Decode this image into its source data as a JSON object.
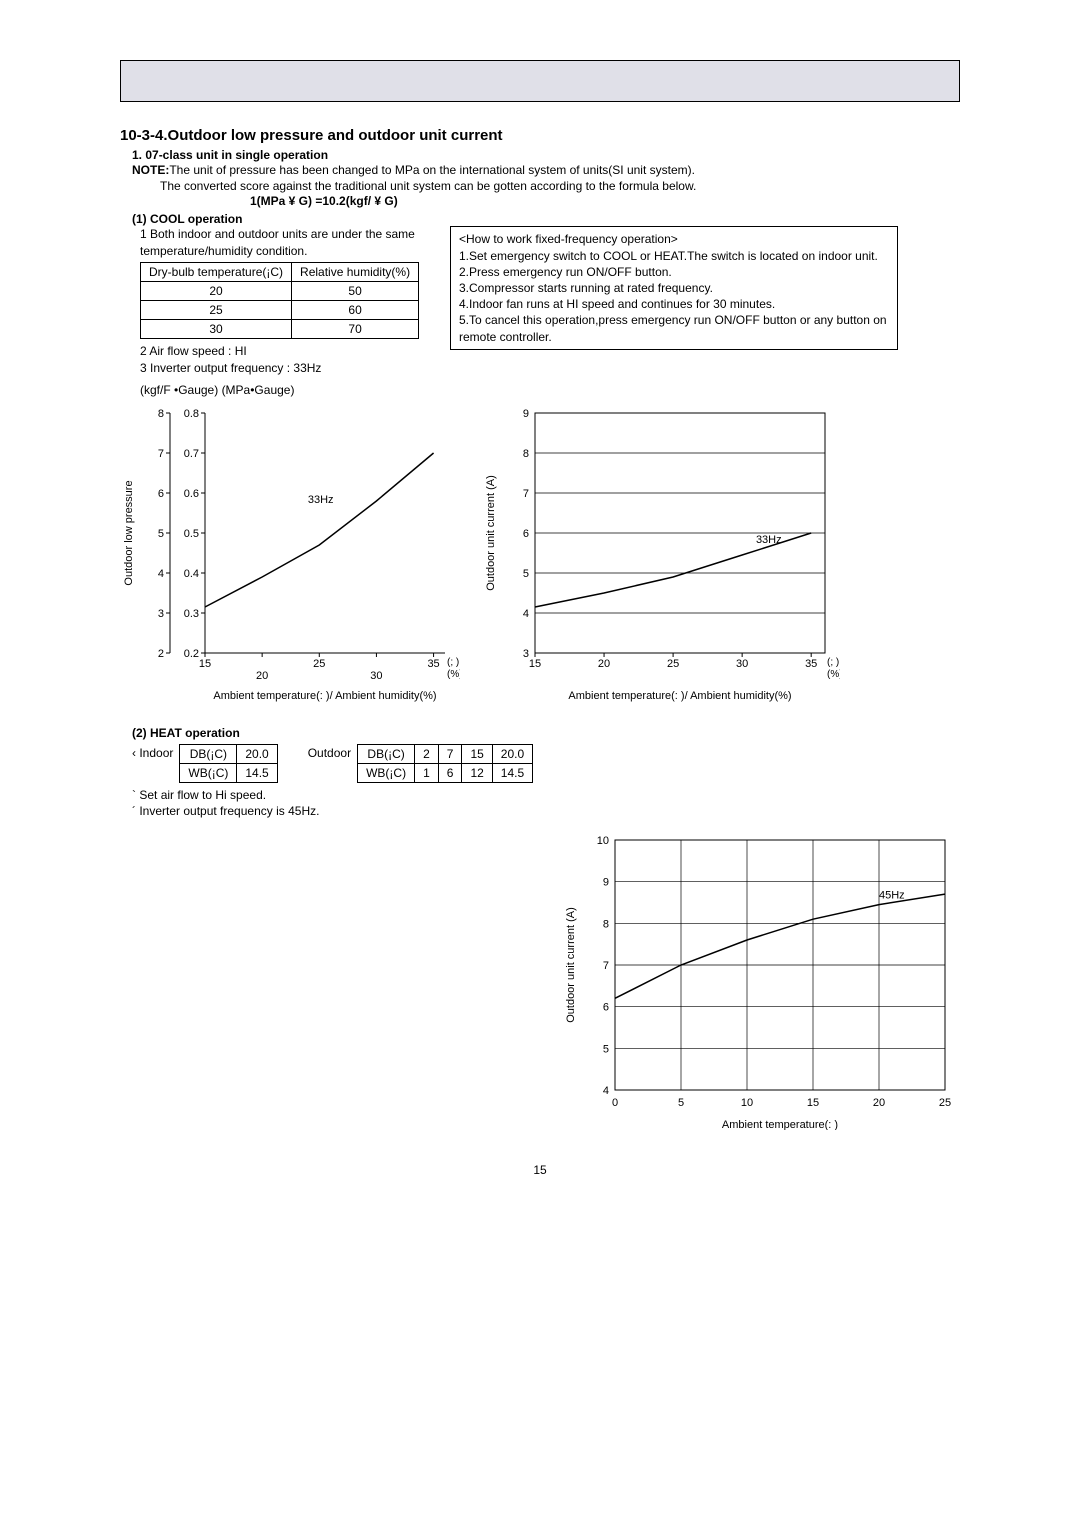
{
  "section_title": "10-3-4.Outdoor low pressure and outdoor unit current",
  "subtitle": "1. 07-class unit in single operation",
  "note_label": "NOTE:",
  "note_line1": "The unit of pressure has been changed to MPa on the international system of units(SI unit system).",
  "note_line2": "The converted score against the traditional unit system can be gotten according to the formula below.",
  "formula": "1(MPa ¥ G) =10.2(kgf/   ¥ G)",
  "cool_head": "(1) COOL operation",
  "cool_cond1": "1 Both indoor and outdoor units are under the same temperature/humidity condition.",
  "cool_table": {
    "headers": [
      "Dry-bulb temperature(¡C)",
      "Relative humidity(%)"
    ],
    "rows": [
      [
        "20",
        "50"
      ],
      [
        "25",
        "60"
      ],
      [
        "30",
        "70"
      ]
    ]
  },
  "cool_cond2": "2 Air flow speed : HI",
  "cool_cond3": "3 Inverter output frequency : 33Hz",
  "gauge_labels": "(kgf/F  •Gauge) (MPa•Gauge)",
  "info_box": {
    "title": "<How to work fixed-frequency operation>",
    "l1": "1.Set emergency switch to COOL or HEAT.The switch is located on indoor unit.",
    "l2": "2.Press emergency run ON/OFF button.",
    "l3": "3.Compressor starts running at rated frequency.",
    "l4": "4.Indoor fan runs at HI speed and continues for 30 minutes.",
    "l5": "5.To cancel this operation,press emergency run ON/OFF button or any button on remote controller."
  },
  "chart1": {
    "type": "line",
    "ylabel": "Outdoor low pressure",
    "xlabel": "Ambient temperature(:  )/ Ambient humidity(%)",
    "y_left_ticks": [
      2,
      3,
      4,
      5,
      6,
      7,
      8
    ],
    "y_right_ticks": [
      0.2,
      0.3,
      0.4,
      0.5,
      0.6,
      0.7,
      0.8
    ],
    "x_ticks": [
      15,
      20,
      25,
      30,
      35
    ],
    "x_sub": "(;  )\n(%)",
    "series_label": "33Hz",
    "line": [
      [
        15,
        0.315
      ],
      [
        20,
        0.39
      ],
      [
        25,
        0.47
      ],
      [
        30,
        0.58
      ],
      [
        35,
        0.7
      ]
    ],
    "axis_color": "#000000",
    "grid_color": "#000000",
    "line_color": "#000000",
    "background_color": "#ffffff",
    "line_width": 1.5,
    "font_size": 11,
    "xlim": [
      15,
      36
    ],
    "ylim_right": [
      0.2,
      0.8
    ]
  },
  "chart2": {
    "type": "line",
    "ylabel": "Outdoor unit current (A)",
    "xlabel": "Ambient temperature(:  )/ Ambient humidity(%)",
    "y_ticks": [
      3,
      4,
      5,
      6,
      7,
      8,
      9
    ],
    "x_ticks": [
      15,
      20,
      25,
      30,
      35
    ],
    "x_sub": "(;  )\n(%)",
    "series_label": "33Hz",
    "line": [
      [
        15,
        4.15
      ],
      [
        20,
        4.5
      ],
      [
        25,
        4.9
      ],
      [
        30,
        5.45
      ],
      [
        35,
        6.0
      ]
    ],
    "axis_color": "#000000",
    "grid_color": "#000000",
    "line_color": "#000000",
    "background_color": "#ffffff",
    "line_width": 1.5,
    "font_size": 11,
    "xlim": [
      15,
      36
    ],
    "ylim": [
      3,
      9
    ]
  },
  "heat_head": "(2) HEAT operation",
  "indoor_label": "Indoor",
  "indoor_table": {
    "rows": [
      [
        "DB(¡C)",
        "20.0"
      ],
      [
        "WB(¡C)",
        "14.5"
      ]
    ]
  },
  "outdoor_label": "Outdoor",
  "outdoor_table": {
    "rows": [
      [
        "DB(¡C)",
        "2",
        "7",
        "15",
        "20.0"
      ],
      [
        "WB(¡C)",
        "1",
        "6",
        "12",
        "14.5"
      ]
    ]
  },
  "heat_note1": "Set air flow to Hi speed.",
  "heat_note2": "Inverter output frequency is 45Hz.",
  "chart3": {
    "type": "line",
    "ylabel": "Outdoor unit current (A)",
    "xlabel": "Ambient temperature(:  )",
    "y_ticks": [
      4,
      5,
      6,
      7,
      8,
      9,
      10
    ],
    "x_ticks": [
      0,
      5,
      10,
      15,
      20,
      25
    ],
    "series_label": "45Hz",
    "line": [
      [
        0,
        6.2
      ],
      [
        5,
        7.0
      ],
      [
        10,
        7.6
      ],
      [
        15,
        8.1
      ],
      [
        20,
        8.45
      ],
      [
        25,
        8.7
      ]
    ],
    "axis_color": "#000000",
    "grid_color": "#000000",
    "line_color": "#000000",
    "background_color": "#ffffff",
    "line_width": 1.5,
    "font_size": 11,
    "xlim": [
      0,
      25
    ],
    "ylim": [
      4,
      10
    ]
  },
  "page_number": "15"
}
